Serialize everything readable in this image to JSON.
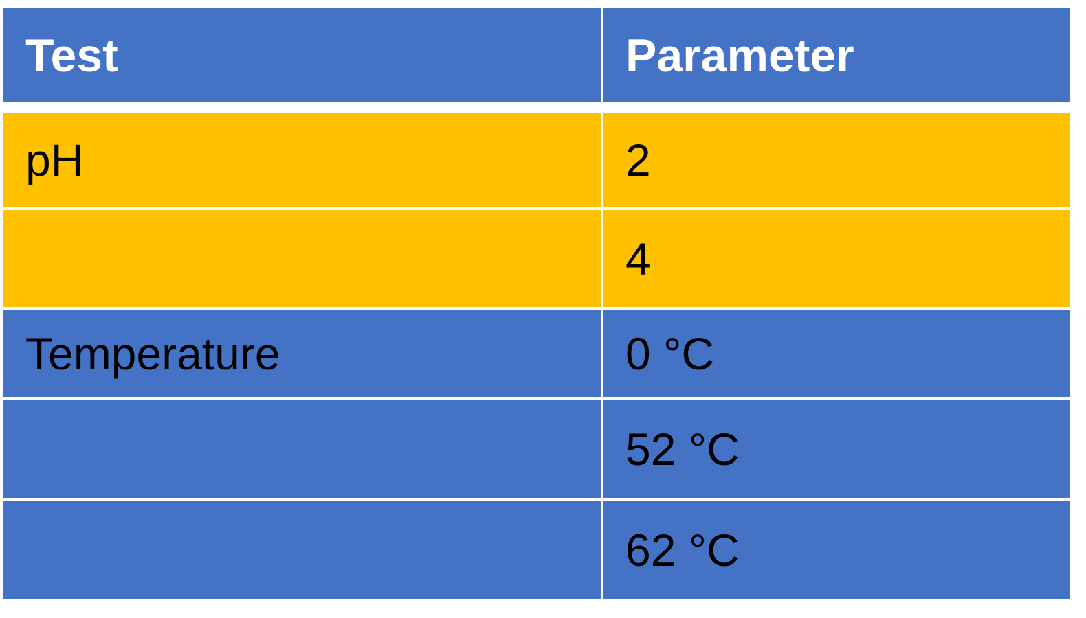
{
  "colors": {
    "header_bg": "#4472C4",
    "ph_bg": "#FFC000",
    "temp_bg": "#4472C4",
    "header_text": "#FFFFFF",
    "body_text": "#000000",
    "grid_lines": "#FFFFFF"
  },
  "table": {
    "headers": [
      "Test",
      "Parameter"
    ],
    "rows": [
      {
        "test": "pH",
        "parameter": "2",
        "group": "ph"
      },
      {
        "test": "",
        "parameter": "4",
        "group": "ph"
      },
      {
        "test": "Temperature",
        "parameter": "0 °C",
        "group": "temp"
      },
      {
        "test": "",
        "parameter": "52 °C",
        "group": "temp"
      },
      {
        "test": "",
        "parameter": "62 °C",
        "group": "temp"
      }
    ]
  }
}
